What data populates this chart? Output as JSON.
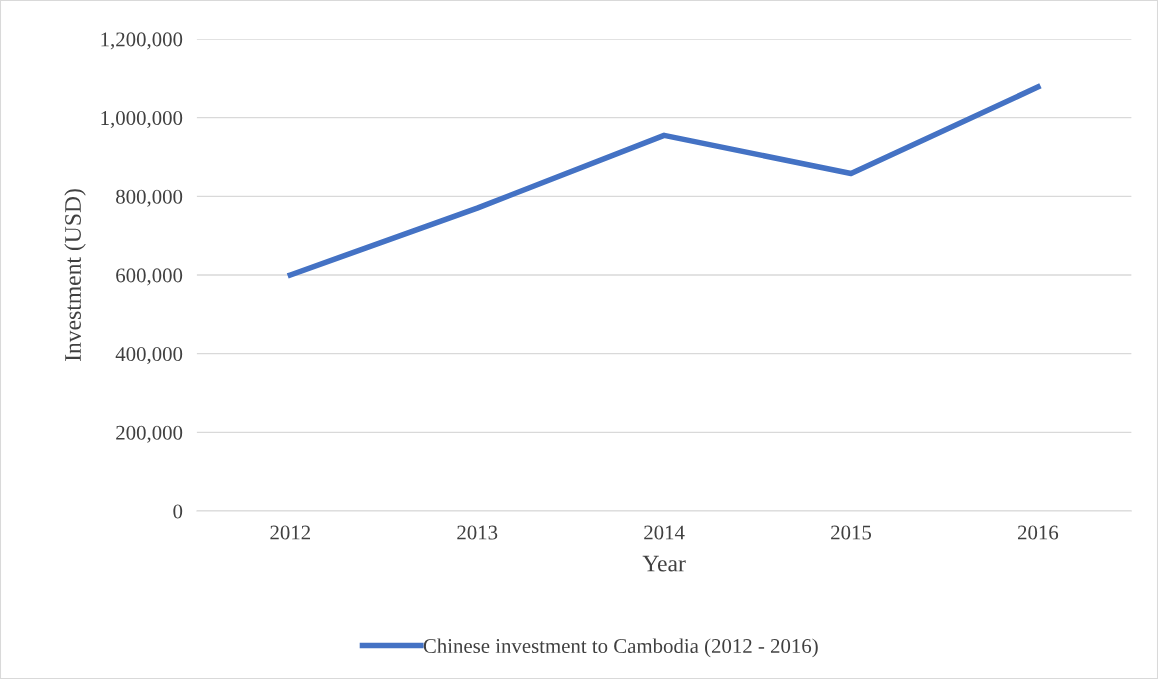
{
  "chart_data": {
    "type": "line",
    "xlabel": "Year",
    "ylabel": "Investment (USD)",
    "categories": [
      "2012",
      "2013",
      "2014",
      "2015",
      "2016"
    ],
    "series": [
      {
        "name": "Chinese investment to Cambodia (2012 - 2016)",
        "color": "#4472c4",
        "values": [
          600000,
          770000,
          955000,
          858000,
          1078000
        ]
      }
    ],
    "ylim": [
      0,
      1200000
    ],
    "yticks": [
      0,
      {
        "value": 200000,
        "label": "200,000"
      },
      {
        "value": 400000,
        "label": "400,000"
      },
      {
        "value": 600000,
        "label": "600,000"
      },
      {
        "value": 800000,
        "label": "800,000"
      },
      {
        "value": 1000000,
        "label": "1,000,000"
      },
      {
        "value": 1200000,
        "label": "1,200,000"
      }
    ],
    "grid": "y",
    "legend": "bottom",
    "marker": "none",
    "line_style": "solid"
  }
}
